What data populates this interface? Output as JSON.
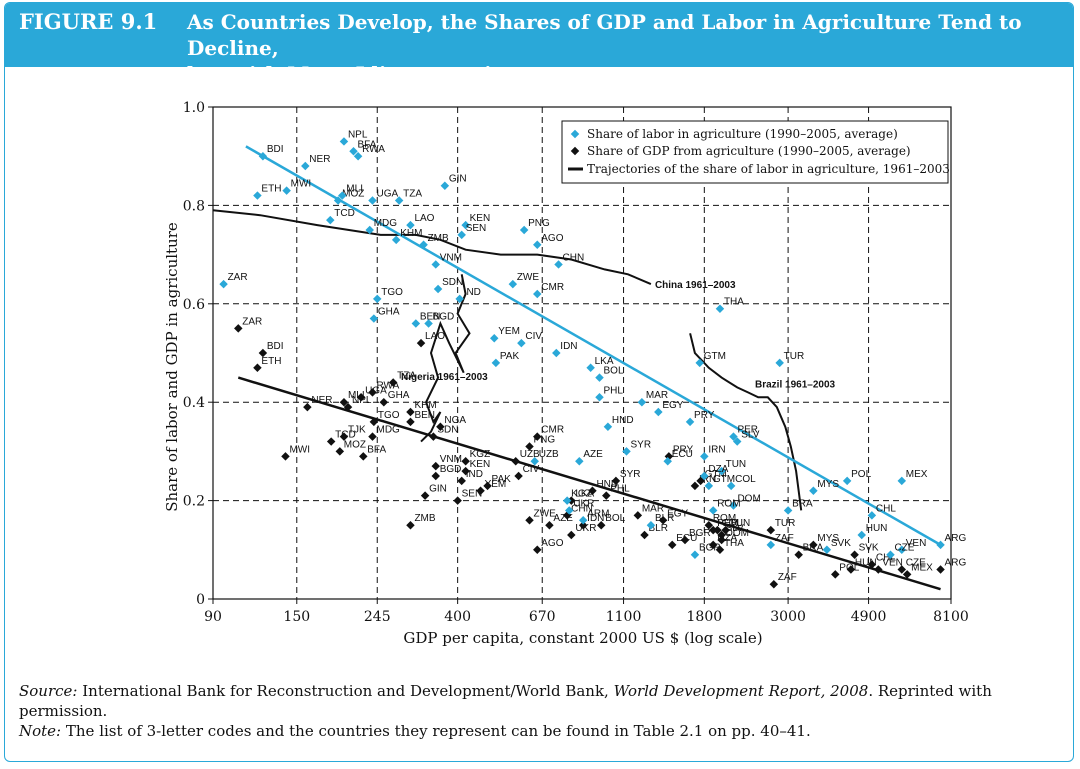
{
  "figure": {
    "number": "FIGURE 9.1",
    "title_line1": "As Countries Develop, the Shares of GDP and Labor in Agriculture Tend to Decline,",
    "title_line2": "but with Many Idiosyncrasies"
  },
  "colors": {
    "header": "#2aa8d8",
    "labor": "#2aa8d8",
    "gdp": "#111111"
  },
  "chart_data": {
    "type": "scatter",
    "xlabel": "GDP per capita, constant 2000 US $ (log scale)",
    "ylabel": "Share of labor and GDP in agriculture",
    "x_scale": "log",
    "xlim": [
      90,
      8100
    ],
    "ylim": [
      0,
      1.0
    ],
    "x_ticks": [
      90,
      150,
      245,
      400,
      670,
      1100,
      1800,
      3000,
      4900,
      8100
    ],
    "x_tick_labels": [
      "90",
      "150",
      "245",
      "400",
      "670",
      "1100",
      "1800",
      "3000",
      "4900",
      "8100"
    ],
    "y_ticks": [
      0,
      0.2,
      0.4,
      0.6,
      0.8,
      1.0
    ],
    "y_tick_labels": [
      "0",
      "0.2",
      "0.4",
      "0.6",
      "0.8",
      "1.0"
    ],
    "grid": "dashed",
    "legend_position": "top-right",
    "legend": [
      "Share of labor in agriculture (1990–2005, average)",
      "Share of GDP from agriculture (1990–2005, average)",
      "Trajectories of the share of labor in agriculture, 1961–2003"
    ],
    "labor_points": [
      {
        "label": "BDI",
        "x": 122,
        "y": 0.9
      },
      {
        "label": "NER",
        "x": 158,
        "y": 0.88
      },
      {
        "label": "NPL",
        "x": 200,
        "y": 0.93
      },
      {
        "label": "BFA",
        "x": 212,
        "y": 0.91
      },
      {
        "label": "RWA",
        "x": 218,
        "y": 0.9
      },
      {
        "label": "ETH",
        "x": 118,
        "y": 0.82
      },
      {
        "label": "MWI",
        "x": 141,
        "y": 0.83
      },
      {
        "label": "MOZ",
        "x": 193,
        "y": 0.81
      },
      {
        "label": "MLI",
        "x": 198,
        "y": 0.82
      },
      {
        "label": "UGA",
        "x": 238,
        "y": 0.81
      },
      {
        "label": "TZA",
        "x": 280,
        "y": 0.81
      },
      {
        "label": "GIN",
        "x": 370,
        "y": 0.84
      },
      {
        "label": "TCD",
        "x": 184,
        "y": 0.77
      },
      {
        "label": "MDG",
        "x": 234,
        "y": 0.75
      },
      {
        "label": "KHM",
        "x": 275,
        "y": 0.73
      },
      {
        "label": "LAO",
        "x": 300,
        "y": 0.76
      },
      {
        "label": "ZMB",
        "x": 325,
        "y": 0.72
      },
      {
        "label": "KEN",
        "x": 420,
        "y": 0.76
      },
      {
        "label": "SEN",
        "x": 410,
        "y": 0.74
      },
      {
        "label": "PNG",
        "x": 600,
        "y": 0.75
      },
      {
        "label": "AGO",
        "x": 650,
        "y": 0.72
      },
      {
        "label": "VNM",
        "x": 350,
        "y": 0.68
      },
      {
        "label": "CHN",
        "x": 740,
        "y": 0.68
      },
      {
        "label": "ZAR",
        "x": 96,
        "y": 0.64
      },
      {
        "label": "TGO",
        "x": 245,
        "y": 0.61
      },
      {
        "label": "SDN",
        "x": 355,
        "y": 0.63
      },
      {
        "label": "IND",
        "x": 405,
        "y": 0.61
      },
      {
        "label": "ZWE",
        "x": 560,
        "y": 0.64
      },
      {
        "label": "CMR",
        "x": 650,
        "y": 0.62
      },
      {
        "label": "THA",
        "x": 1980,
        "y": 0.59
      },
      {
        "label": "GHA",
        "x": 240,
        "y": 0.57
      },
      {
        "label": "BEN",
        "x": 310,
        "y": 0.56
      },
      {
        "label": "BGD",
        "x": 335,
        "y": 0.56
      },
      {
        "label": "CIV",
        "x": 590,
        "y": 0.52
      },
      {
        "label": "YEM",
        "x": 500,
        "y": 0.53
      },
      {
        "label": "IDN",
        "x": 730,
        "y": 0.5
      },
      {
        "label": "PAK",
        "x": 505,
        "y": 0.48
      },
      {
        "label": "LKA",
        "x": 900,
        "y": 0.47
      },
      {
        "label": "BOL",
        "x": 950,
        "y": 0.45
      },
      {
        "label": "GTM",
        "x": 1750,
        "y": 0.48
      },
      {
        "label": "TUR",
        "x": 2850,
        "y": 0.48
      },
      {
        "label": "PHL",
        "x": 950,
        "y": 0.41
      },
      {
        "label": "MAR",
        "x": 1230,
        "y": 0.4
      },
      {
        "label": "EGY",
        "x": 1360,
        "y": 0.38
      },
      {
        "label": "PRY",
        "x": 1650,
        "y": 0.36
      },
      {
        "label": "HND",
        "x": 1000,
        "y": 0.35
      },
      {
        "label": "PER",
        "x": 2150,
        "y": 0.33
      },
      {
        "label": "SLV",
        "x": 2200,
        "y": 0.32
      },
      {
        "label": "SYR",
        "x": 1120,
        "y": 0.3
      },
      {
        "label": "ECU",
        "x": 1440,
        "y": 0.28
      },
      {
        "label": "IRN",
        "x": 1800,
        "y": 0.29
      },
      {
        "label": "TUN",
        "x": 2000,
        "y": 0.26
      },
      {
        "label": "DZA",
        "x": 1800,
        "y": 0.25
      },
      {
        "label": "GTM",
        "x": 1850,
        "y": 0.23
      },
      {
        "label": "COL",
        "x": 2120,
        "y": 0.23
      },
      {
        "label": "DOM",
        "x": 2150,
        "y": 0.19
      },
      {
        "label": "ROM",
        "x": 1900,
        "y": 0.18
      },
      {
        "label": "BRA",
        "x": 3000,
        "y": 0.18
      },
      {
        "label": "MYS",
        "x": 3500,
        "y": 0.22
      },
      {
        "label": "POL",
        "x": 4300,
        "y": 0.24
      },
      {
        "label": "MEX",
        "x": 6000,
        "y": 0.24
      },
      {
        "label": "CHL",
        "x": 5000,
        "y": 0.17
      },
      {
        "label": "HUN",
        "x": 4700,
        "y": 0.13
      },
      {
        "label": "VEN",
        "x": 6000,
        "y": 0.1
      },
      {
        "label": "CZE",
        "x": 5600,
        "y": 0.09
      },
      {
        "label": "ARG",
        "x": 7600,
        "y": 0.11
      },
      {
        "label": "ZAF",
        "x": 2700,
        "y": 0.11
      },
      {
        "label": "SVK",
        "x": 3800,
        "y": 0.1
      },
      {
        "label": "BGR",
        "x": 1700,
        "y": 0.09
      },
      {
        "label": "UZB",
        "x": 640,
        "y": 0.28
      },
      {
        "label": "AZE",
        "x": 840,
        "y": 0.28
      },
      {
        "label": "KGZ",
        "x": 780,
        "y": 0.2
      },
      {
        "label": "UKR",
        "x": 790,
        "y": 0.18
      },
      {
        "label": "ARM",
        "x": 860,
        "y": 0.16
      },
      {
        "label": "BLR",
        "x": 1300,
        "y": 0.15
      }
    ],
    "gdp_points": [
      {
        "label": "ZAR",
        "x": 105,
        "y": 0.55
      },
      {
        "label": "BDI",
        "x": 122,
        "y": 0.5
      },
      {
        "label": "ETH",
        "x": 118,
        "y": 0.47
      },
      {
        "label": "NER",
        "x": 160,
        "y": 0.39
      },
      {
        "label": "MLI",
        "x": 200,
        "y": 0.4
      },
      {
        "label": "NPL",
        "x": 205,
        "y": 0.39
      },
      {
        "label": "UGA",
        "x": 222,
        "y": 0.41
      },
      {
        "label": "RWA",
        "x": 238,
        "y": 0.42
      },
      {
        "label": "TZA",
        "x": 270,
        "y": 0.44
      },
      {
        "label": "GHA",
        "x": 255,
        "y": 0.4
      },
      {
        "label": "KHM",
        "x": 300,
        "y": 0.38
      },
      {
        "label": "BEN",
        "x": 300,
        "y": 0.36
      },
      {
        "label": "TGO",
        "x": 240,
        "y": 0.36
      },
      {
        "label": "LAO",
        "x": 320,
        "y": 0.52
      },
      {
        "label": "TJK",
        "x": 200,
        "y": 0.33
      },
      {
        "label": "TCD",
        "x": 185,
        "y": 0.32
      },
      {
        "label": "MDG",
        "x": 238,
        "y": 0.33
      },
      {
        "label": "SDN",
        "x": 345,
        "y": 0.33
      },
      {
        "label": "NGA",
        "x": 360,
        "y": 0.35
      },
      {
        "label": "MWI",
        "x": 140,
        "y": 0.29
      },
      {
        "label": "MOZ",
        "x": 195,
        "y": 0.3
      },
      {
        "label": "BFA",
        "x": 225,
        "y": 0.29
      },
      {
        "label": "VNM",
        "x": 350,
        "y": 0.27
      },
      {
        "label": "BGD",
        "x": 350,
        "y": 0.25
      },
      {
        "label": "KEN",
        "x": 420,
        "y": 0.26
      },
      {
        "label": "IND",
        "x": 410,
        "y": 0.24
      },
      {
        "label": "PAK",
        "x": 480,
        "y": 0.23
      },
      {
        "label": "YEM",
        "x": 460,
        "y": 0.22
      },
      {
        "label": "GIN",
        "x": 328,
        "y": 0.21
      },
      {
        "label": "SEN",
        "x": 400,
        "y": 0.2
      },
      {
        "label": "CIV",
        "x": 580,
        "y": 0.25
      },
      {
        "label": "CMR",
        "x": 650,
        "y": 0.33
      },
      {
        "label": "PNG",
        "x": 620,
        "y": 0.31
      },
      {
        "label": "UZB",
        "x": 570,
        "y": 0.28
      },
      {
        "label": "HND",
        "x": 910,
        "y": 0.22
      },
      {
        "label": "SYR",
        "x": 1050,
        "y": 0.24
      },
      {
        "label": "PHL",
        "x": 990,
        "y": 0.21
      },
      {
        "label": "LKA",
        "x": 800,
        "y": 0.2
      },
      {
        "label": "ZMB",
        "x": 300,
        "y": 0.15
      },
      {
        "label": "ZWE",
        "x": 620,
        "y": 0.16
      },
      {
        "label": "CHN",
        "x": 780,
        "y": 0.17
      },
      {
        "label": "IDN",
        "x": 860,
        "y": 0.15
      },
      {
        "label": "UKR",
        "x": 800,
        "y": 0.13
      },
      {
        "label": "AZE",
        "x": 700,
        "y": 0.15
      },
      {
        "label": "AGO",
        "x": 650,
        "y": 0.1
      },
      {
        "label": "BOL",
        "x": 960,
        "y": 0.15
      },
      {
        "label": "MAR",
        "x": 1200,
        "y": 0.17
      },
      {
        "label": "EGY",
        "x": 1400,
        "y": 0.16
      },
      {
        "label": "BLR",
        "x": 1250,
        "y": 0.13
      },
      {
        "label": "ECU",
        "x": 1480,
        "y": 0.11
      },
      {
        "label": "BGR",
        "x": 1600,
        "y": 0.12
      },
      {
        "label": "DZA",
        "x": 1900,
        "y": 0.11
      },
      {
        "label": "ROM",
        "x": 1850,
        "y": 0.15
      },
      {
        "label": "PRY",
        "x": 1450,
        "y": 0.29
      },
      {
        "label": "IRN",
        "x": 1700,
        "y": 0.23
      },
      {
        "label": "GTM",
        "x": 1760,
        "y": 0.24
      },
      {
        "label": "PER",
        "x": 1900,
        "y": 0.14
      },
      {
        "label": "COL",
        "x": 1950,
        "y": 0.14
      },
      {
        "label": "TUN",
        "x": 2050,
        "y": 0.14
      },
      {
        "label": "SLV",
        "x": 2000,
        "y": 0.13
      },
      {
        "label": "DOM",
        "x": 2000,
        "y": 0.12
      },
      {
        "label": "THA",
        "x": 1980,
        "y": 0.1
      },
      {
        "label": "TUR",
        "x": 2700,
        "y": 0.14
      },
      {
        "label": "BRA",
        "x": 3200,
        "y": 0.09
      },
      {
        "label": "ZAF",
        "x": 2750,
        "y": 0.03
      },
      {
        "label": "MYS",
        "x": 3500,
        "y": 0.11
      },
      {
        "label": "HUN",
        "x": 4400,
        "y": 0.06
      },
      {
        "label": "POL",
        "x": 4000,
        "y": 0.05
      },
      {
        "label": "SVK",
        "x": 4500,
        "y": 0.09
      },
      {
        "label": "CHL",
        "x": 5000,
        "y": 0.07
      },
      {
        "label": "VEN",
        "x": 5200,
        "y": 0.06
      },
      {
        "label": "CZE",
        "x": 6000,
        "y": 0.06
      },
      {
        "label": "MEX",
        "x": 6200,
        "y": 0.05
      },
      {
        "label": "ARG",
        "x": 7600,
        "y": 0.06
      },
      {
        "label": "KGZ",
        "x": 420,
        "y": 0.28
      }
    ],
    "labor_trend": {
      "x": [
        90,
        7600
      ],
      "y": [
        0.93,
        0.11
      ]
    },
    "gdp_trend": {
      "x": [
        105,
        7600
      ],
      "y": [
        0.45,
        0.02
      ]
    },
    "trajectories": [
      {
        "name": "China 1961–2003",
        "x": [
          90,
          120,
          170,
          250,
          310,
          360,
          420,
          520,
          650,
          800,
          980,
          1130,
          1300
        ],
        "y": [
          0.79,
          0.78,
          0.76,
          0.74,
          0.74,
          0.73,
          0.71,
          0.7,
          0.7,
          0.69,
          0.67,
          0.66,
          0.64
        ]
      },
      {
        "name": "Nigeria 1961–2003",
        "x": [
          410,
          420,
          400,
          430,
          395,
          415,
          380,
          360,
          340,
          355,
          330,
          345,
          360,
          340,
          320
        ],
        "y": [
          0.66,
          0.62,
          0.58,
          0.54,
          0.5,
          0.46,
          0.52,
          0.56,
          0.5,
          0.45,
          0.4,
          0.36,
          0.38,
          0.34,
          0.32
        ]
      },
      {
        "name": "Brazil 1961–2003",
        "x": [
          1650,
          1700,
          1850,
          2000,
          2200,
          2350,
          2500,
          2650,
          2800,
          2950,
          3050,
          3150,
          3250
        ],
        "y": [
          0.54,
          0.5,
          0.47,
          0.45,
          0.43,
          0.42,
          0.41,
          0.41,
          0.39,
          0.35,
          0.31,
          0.26,
          0.18
        ]
      }
    ]
  },
  "source": {
    "source_prefix": "Source:",
    "source_text": " International Bank for Reconstruction and Development/World Bank, ",
    "source_italic": "World Development Report, 2008",
    "source_tail": ". Reprinted with permission.",
    "note_prefix": "Note:",
    "note_text": " The list of 3-letter codes and the countries they represent can be found in Table 2.1 on pp. 40–41."
  }
}
